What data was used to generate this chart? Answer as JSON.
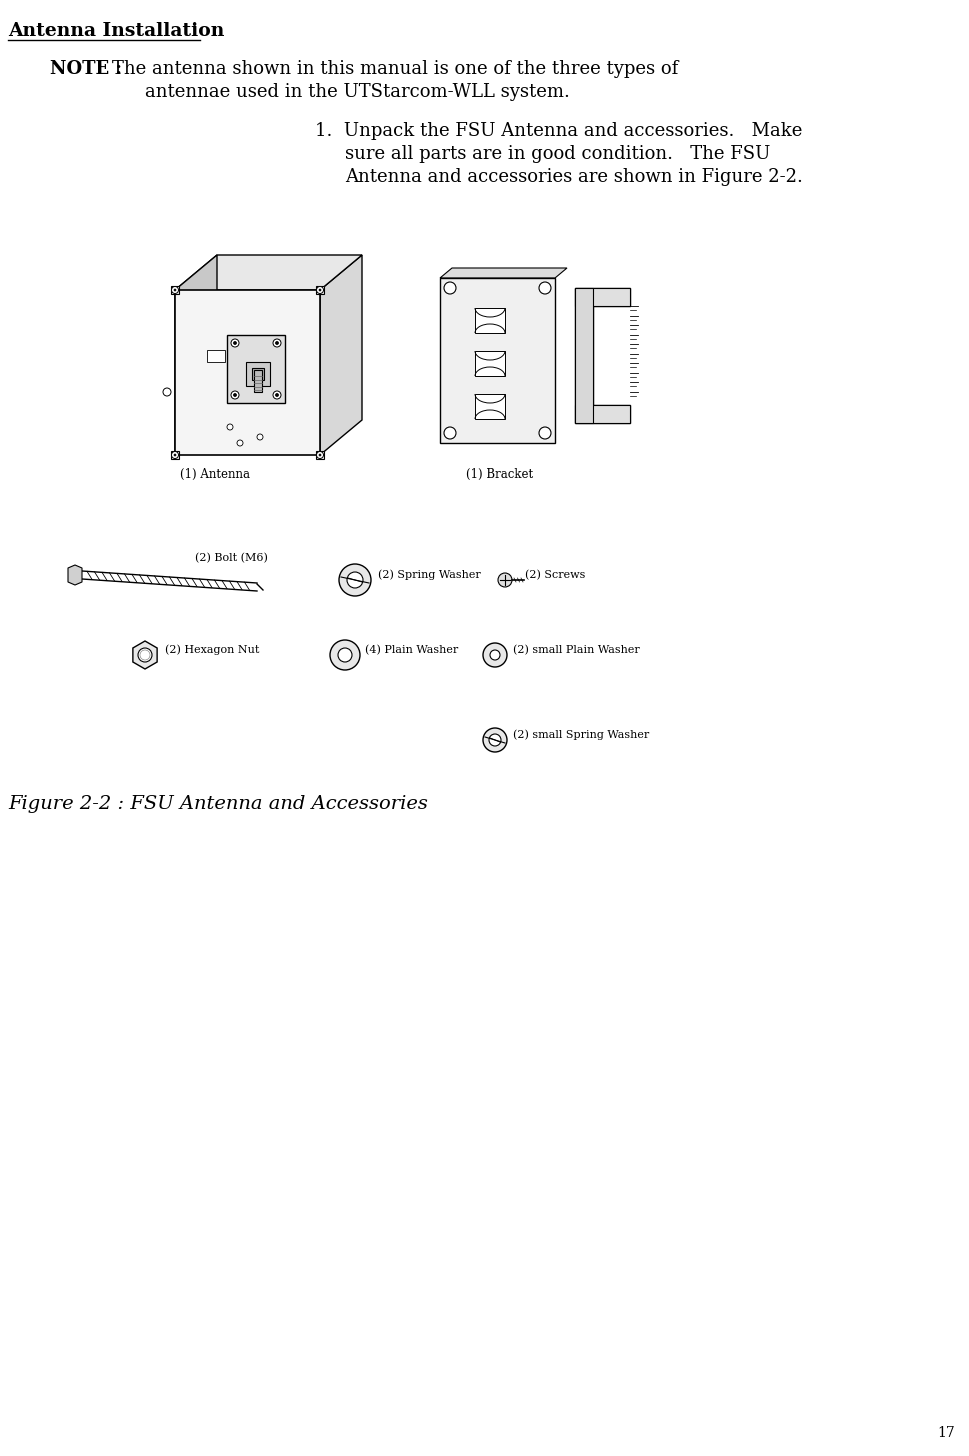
{
  "title": "Antenna Installation",
  "note_bold": "NOTE : ",
  "note_rest": "The antenna shown in this manual is one of the three types of",
  "note_line2": "antennae used in the UTStarcom-WLL system.",
  "step1_line1": "1.  Unpack the FSU Antenna and accessories.   Make",
  "step1_line2": "sure all parts are in good condition.   The FSU",
  "step1_line3": "Antenna and accessories are shown in Figure 2-2.",
  "figure_caption": "Figure 2-2 : FSU Antenna and Accessories",
  "label_antenna": "(1) Antenna",
  "label_bracket": "(1) Bracket",
  "label_bolt": "(2) Bolt (M6)",
  "label_spring_washer": "(2) Spring Washer",
  "label_screws": "(2) Screws",
  "label_hex_nut": "(2) Hexagon Nut",
  "label_plain_washer": "(4) Plain Washer",
  "label_small_plain_washer": "(2) small Plain Washer",
  "label_small_spring_washer": "(2) small Spring Washer",
  "page_number": "17",
  "bg_color": "#ffffff",
  "text_color": "#000000"
}
